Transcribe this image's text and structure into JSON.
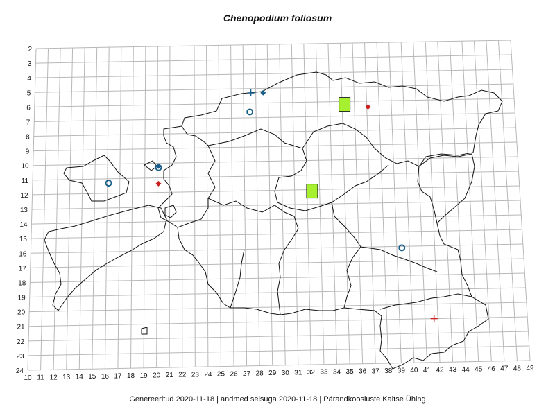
{
  "title": "Chenopodium foliosum",
  "footer": {
    "generated": "Genereeritud 2020-11-18",
    "data_state": "andmed seisuga 2020-11-18",
    "organisation": "Pärandkoosluste Kaitse Ühing",
    "separator": "|"
  },
  "grid": {
    "columns": [
      10,
      11,
      12,
      13,
      14,
      15,
      16,
      17,
      18,
      19,
      20,
      21,
      22,
      23,
      24,
      25,
      26,
      27,
      28,
      29,
      30,
      31,
      32,
      33,
      34,
      35,
      36,
      37,
      38,
      39,
      40,
      41,
      42,
      43,
      44,
      45,
      46,
      47,
      48,
      49
    ],
    "rows": [
      2,
      3,
      4,
      5,
      6,
      7,
      8,
      9,
      10,
      11,
      12,
      13,
      14,
      15,
      16,
      17,
      18,
      19,
      20,
      21,
      22,
      23,
      24
    ]
  },
  "colors": {
    "grid": "#b8b8b8",
    "border": "#111111",
    "green_square": "#a6f030",
    "blue_marker": "#1a5f8a",
    "red_marker": "#cc2020"
  },
  "records": [
    {
      "type": "green-square",
      "col": 35.2,
      "row": 6.2
    },
    {
      "type": "green-square",
      "col": 32.4,
      "row": 12.1
    },
    {
      "type": "blue-circle",
      "col": 27.5,
      "row": 6.6
    },
    {
      "type": "blue-circle",
      "col": 16.1,
      "row": 11.3
    },
    {
      "type": "blue-circle",
      "col": 20.1,
      "row": 10.3
    },
    {
      "type": "blue-circle",
      "col": 39.4,
      "row": 16.1
    },
    {
      "type": "blue-plus",
      "col": 27.6,
      "row": 5.3
    },
    {
      "type": "blue-diamond",
      "col": 28.6,
      "row": 5.3
    },
    {
      "type": "blue-diamond",
      "col": 20.1,
      "row": 10.2
    },
    {
      "type": "red-diamond",
      "col": 37.1,
      "row": 6.4
    },
    {
      "type": "red-diamond",
      "col": 20.1,
      "row": 11.4
    },
    {
      "type": "red-plus",
      "col": 41.7,
      "row": 21.0
    }
  ]
}
